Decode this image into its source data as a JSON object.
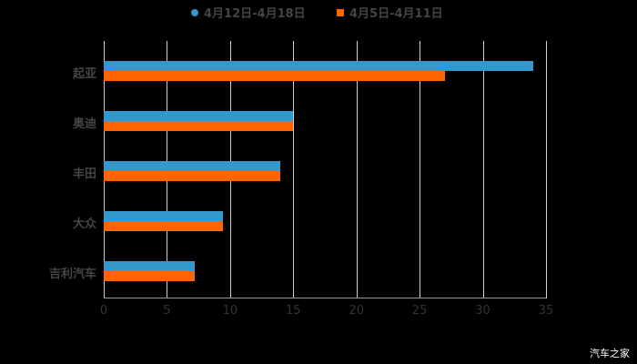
{
  "chart_data": {
    "type": "bar",
    "orientation": "horizontal",
    "title": "",
    "xlabel": "",
    "ylabel": "",
    "categories": [
      "起亚",
      "奥迪",
      "丰田",
      "大众",
      "吉利汽车"
    ],
    "series": [
      {
        "name": "4月12日-4月18日",
        "color": "#3399CC",
        "values": [
          34,
          15,
          14,
          9.4,
          7.2
        ]
      },
      {
        "name": "4月5日-4月11日",
        "color": "#FF6600",
        "values": [
          27,
          15,
          14,
          9.4,
          7.2
        ]
      }
    ],
    "xlim": [
      0,
      35
    ],
    "xticks": [
      "0",
      "5",
      "10",
      "15",
      "20",
      "25",
      "30",
      "35"
    ],
    "grid": true,
    "legend_position": "top"
  },
  "legend": {
    "items": [
      {
        "label": "4月12日-4月18日",
        "color": "#3399CC"
      },
      {
        "label": "4月5日-4月11日",
        "color": "#FF6600"
      }
    ]
  },
  "watermark": "汽车之家"
}
